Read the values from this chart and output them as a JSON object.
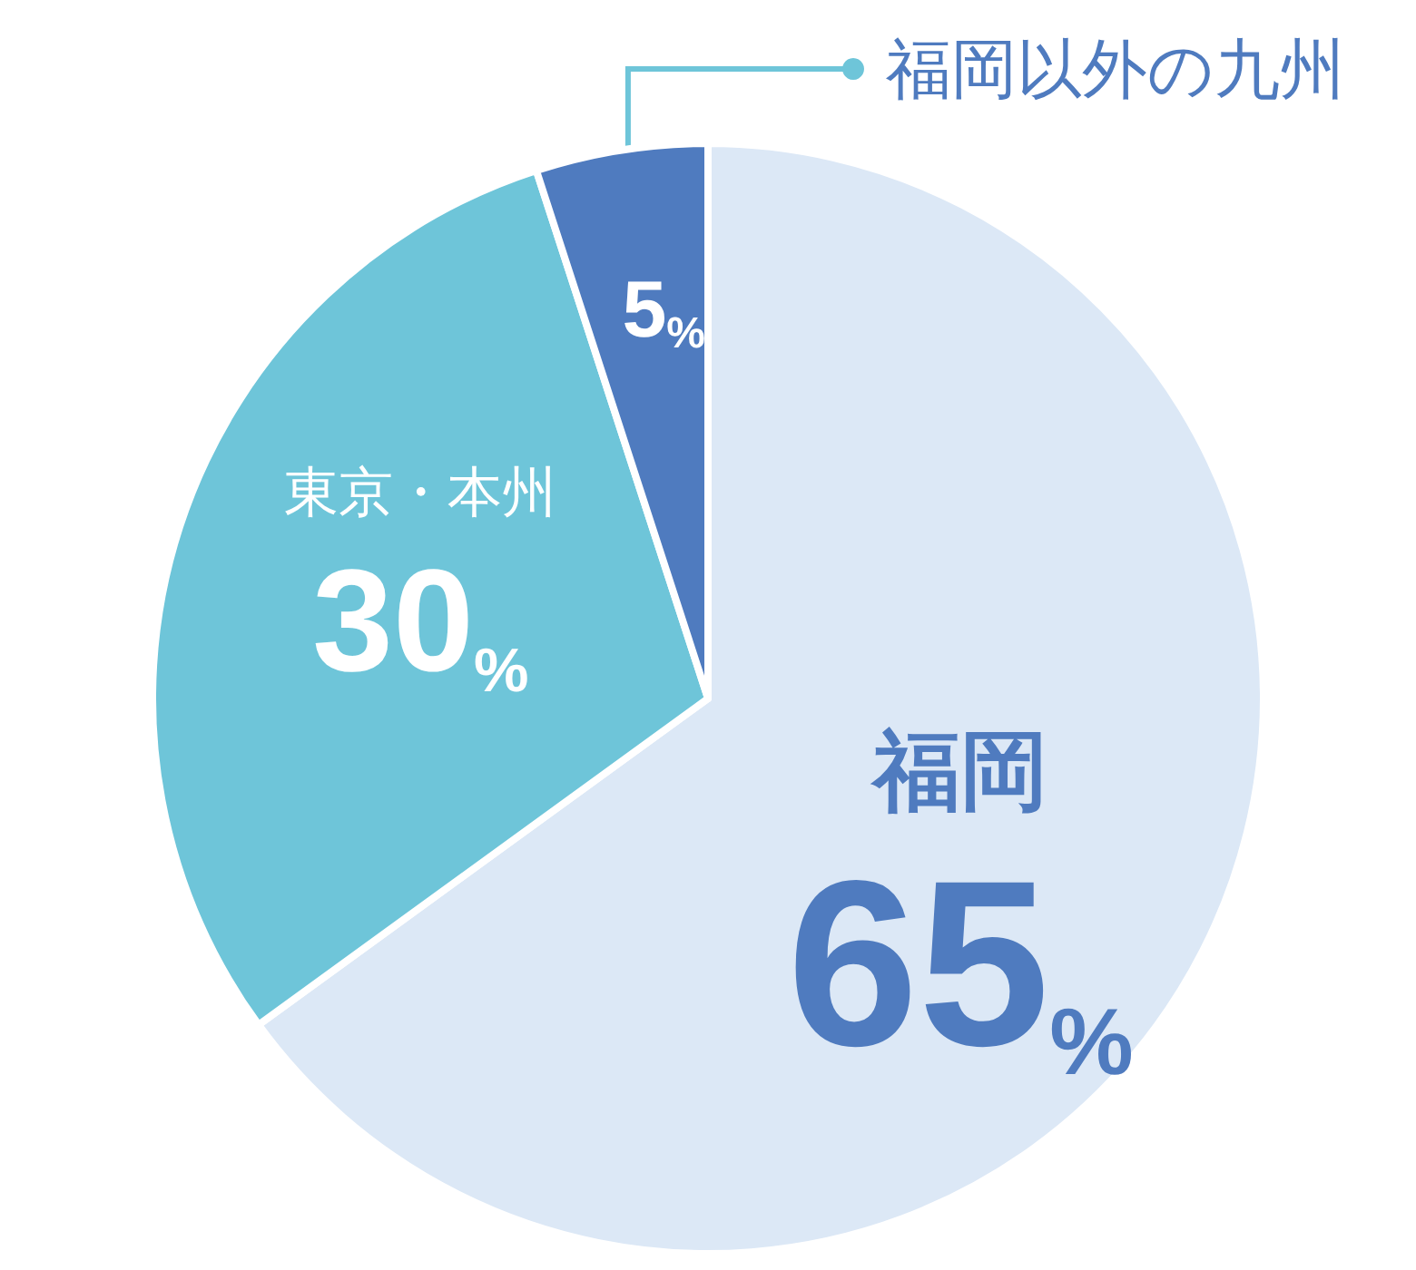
{
  "chart_data": {
    "type": "pie",
    "categories": [
      "福岡",
      "東京・本州",
      "福岡以外の九州"
    ],
    "values": [
      65,
      30,
      5
    ],
    "value_labels": [
      "65%",
      "30%",
      "5%"
    ],
    "colors": [
      "#dce8f6",
      "#6ec5d9",
      "#4f7bbf"
    ]
  }
}
